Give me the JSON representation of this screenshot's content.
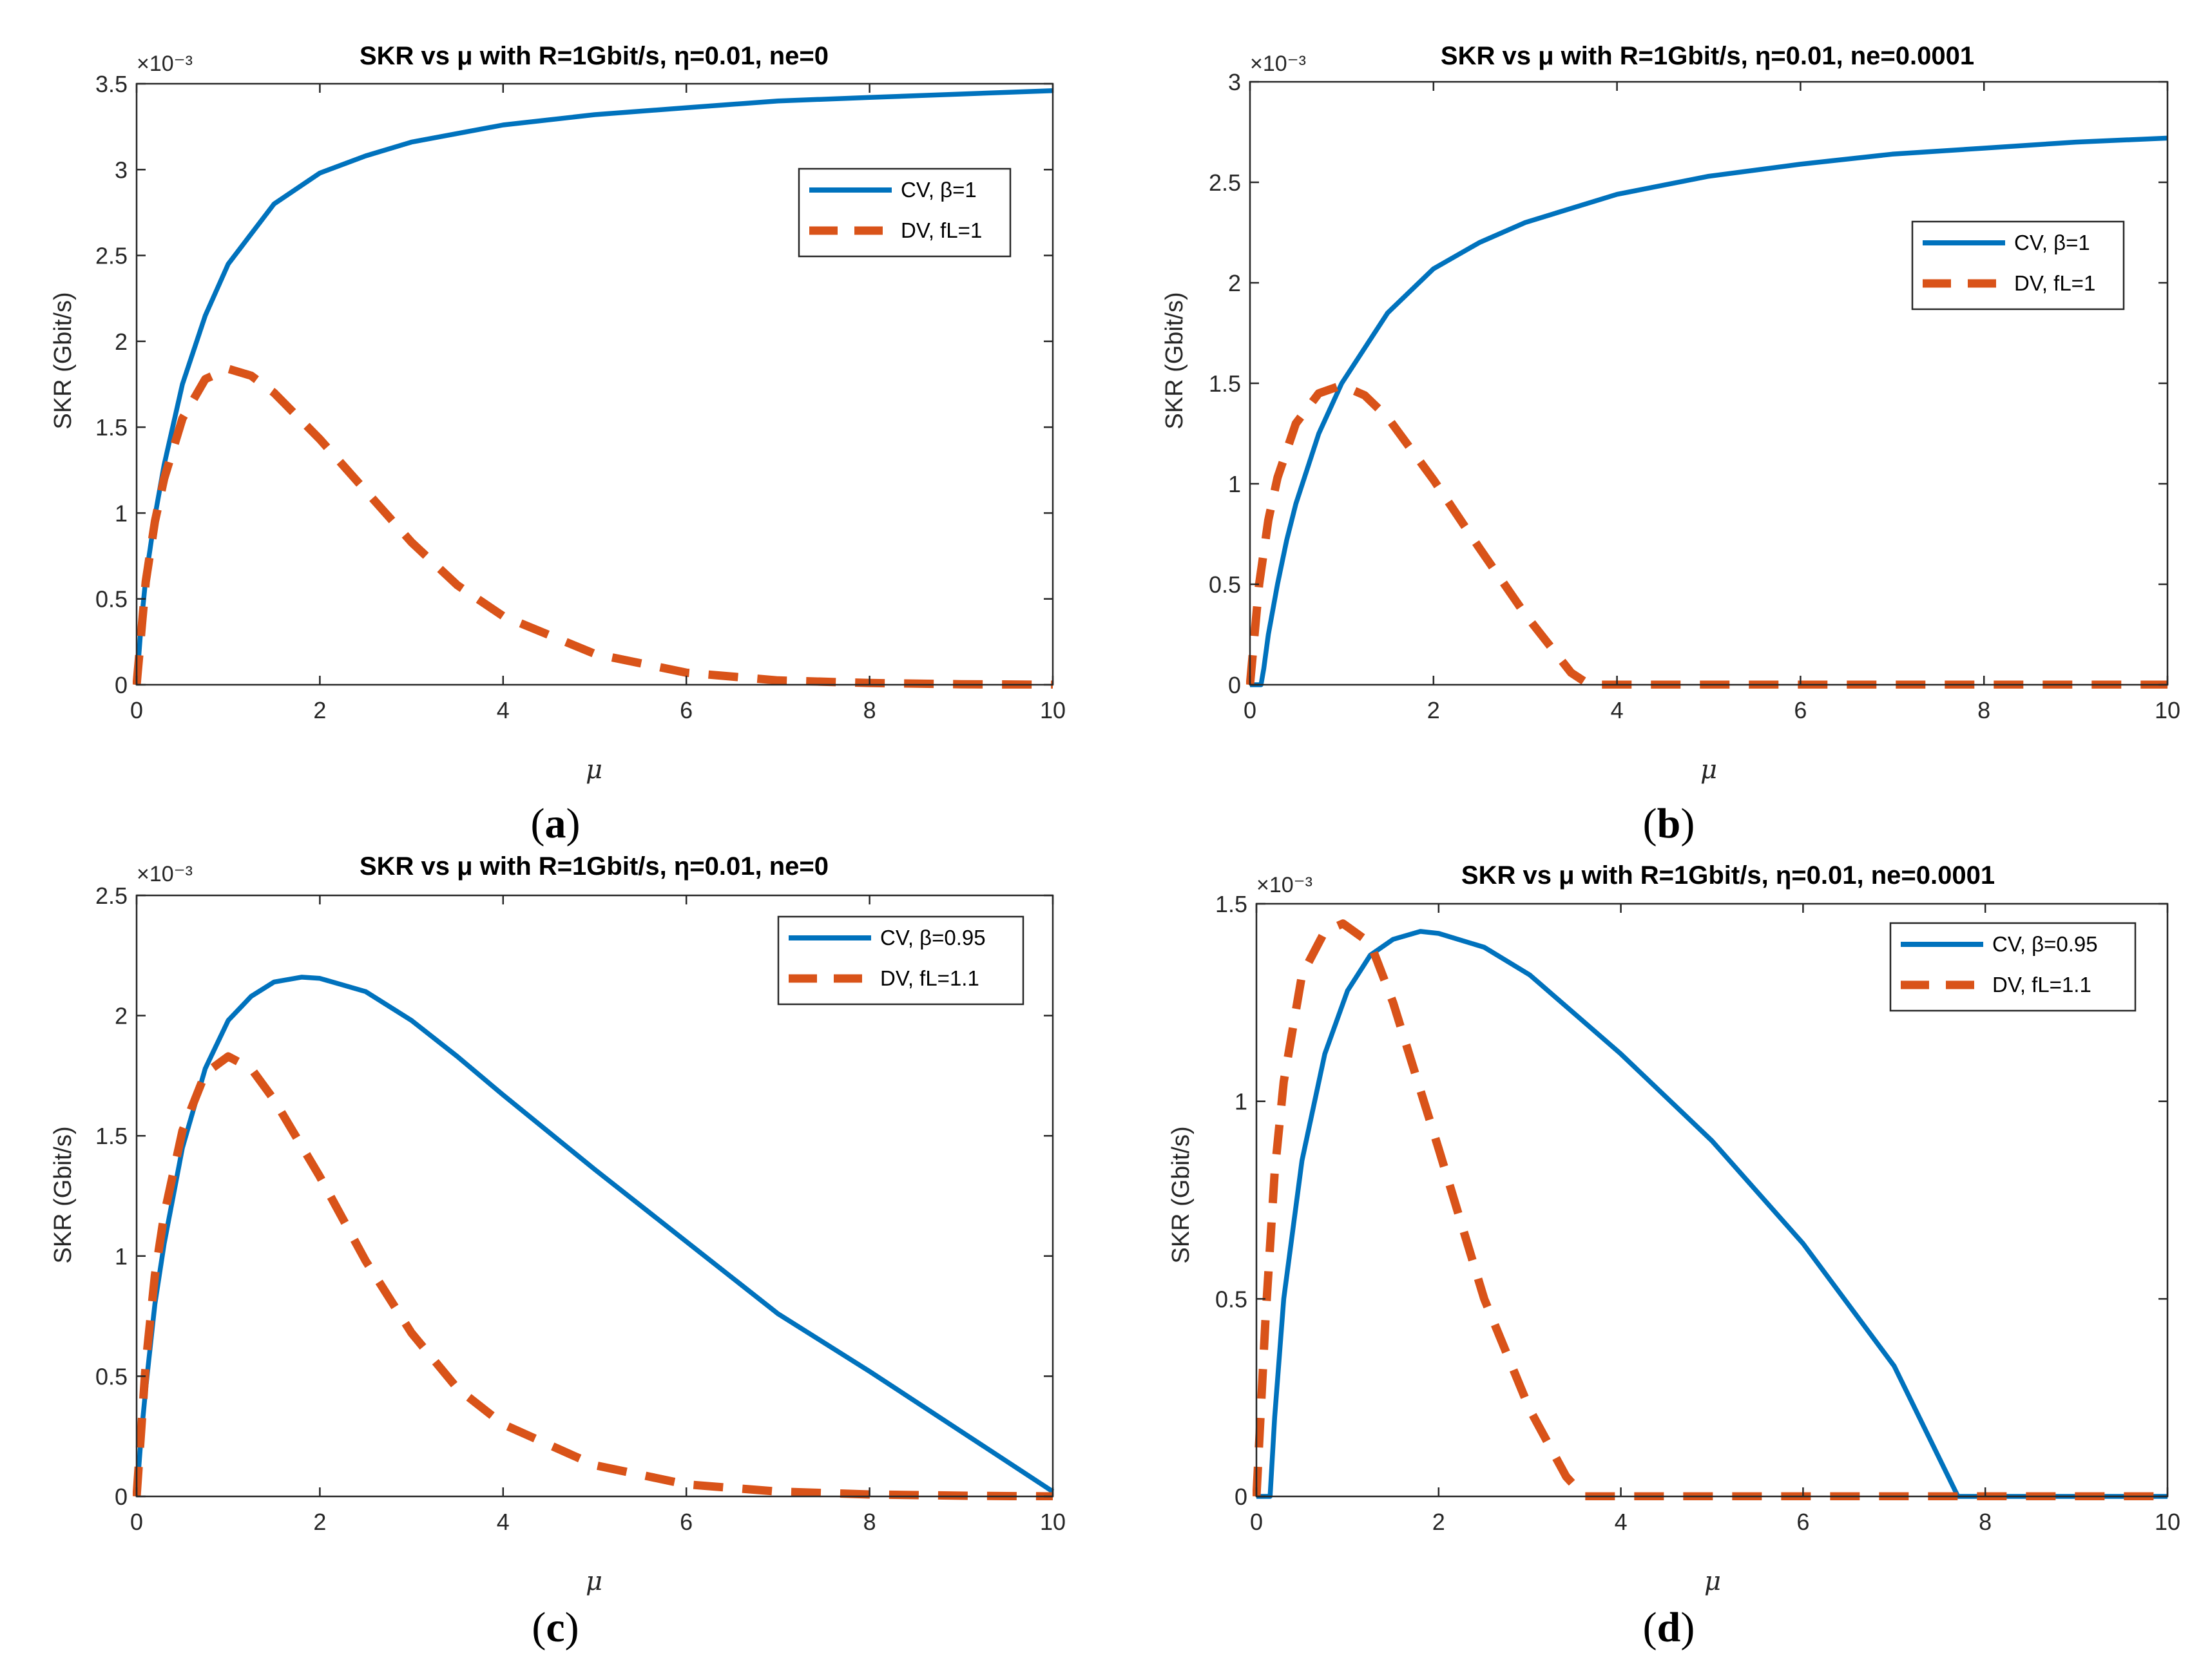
{
  "figure": {
    "panel_labels": [
      "a",
      "b",
      "c",
      "d"
    ]
  },
  "colors": {
    "cv": "#0072BD",
    "dv": "#D95319",
    "axis": "#262626"
  },
  "chart_data": [
    {
      "type": "line",
      "panel": "a",
      "title": "SKR vs μ with R=1Gbit/s, η=0.01, ne=0",
      "xlabel": "μ",
      "ylabel": "SKR (Gbit/s)",
      "y_exponent": "×10⁻³",
      "xlim": [
        0,
        10
      ],
      "ylim": [
        0,
        3.5
      ],
      "xticks": [
        0,
        2,
        4,
        6,
        8,
        10
      ],
      "yticks": [
        0,
        0.5,
        1,
        1.5,
        2,
        2.5,
        3,
        3.5
      ],
      "legend_position": "top-right",
      "series": [
        {
          "name": "CV, β=1",
          "style": "solid",
          "x": [
            0,
            0.05,
            0.1,
            0.2,
            0.3,
            0.5,
            0.75,
            1,
            1.5,
            2,
            2.5,
            3,
            4,
            5,
            6,
            7,
            8,
            9,
            10
          ],
          "y": [
            0,
            0.35,
            0.62,
            0.98,
            1.28,
            1.75,
            2.15,
            2.45,
            2.8,
            2.98,
            3.08,
            3.16,
            3.26,
            3.32,
            3.36,
            3.4,
            3.42,
            3.44,
            3.46
          ]
        },
        {
          "name": "DV, fL=1",
          "style": "dashed",
          "x": [
            0,
            0.1,
            0.2,
            0.3,
            0.5,
            0.75,
            1,
            1.25,
            1.5,
            2,
            2.5,
            3,
            3.5,
            4,
            5,
            6,
            7,
            8,
            9,
            10
          ],
          "y": [
            0,
            0.6,
            0.95,
            1.2,
            1.55,
            1.78,
            1.84,
            1.8,
            1.7,
            1.43,
            1.13,
            0.83,
            0.58,
            0.4,
            0.18,
            0.07,
            0.025,
            0.01,
            0.003,
            0.0
          ]
        }
      ]
    },
    {
      "type": "line",
      "panel": "b",
      "title": "SKR vs μ with R=1Gbit/s, η=0.01, ne=0.0001",
      "xlabel": "μ",
      "ylabel": "SKR (Gbit/s)",
      "y_exponent": "×10⁻³",
      "xlim": [
        0,
        10
      ],
      "ylim": [
        0,
        3
      ],
      "xticks": [
        0,
        2,
        4,
        6,
        8,
        10
      ],
      "yticks": [
        0,
        0.5,
        1,
        1.5,
        2,
        2.5,
        3
      ],
      "legend_position": "top-right",
      "series": [
        {
          "name": "CV, β=1",
          "style": "solid",
          "x": [
            0,
            0.12,
            0.15,
            0.2,
            0.3,
            0.4,
            0.5,
            0.75,
            1,
            1.5,
            2,
            2.5,
            3,
            4,
            5,
            6,
            7,
            8,
            9,
            10
          ],
          "y": [
            0,
            0,
            0.08,
            0.25,
            0.5,
            0.72,
            0.9,
            1.25,
            1.5,
            1.85,
            2.07,
            2.2,
            2.3,
            2.44,
            2.53,
            2.59,
            2.64,
            2.67,
            2.7,
            2.72
          ]
        },
        {
          "name": "DV, fL=1",
          "style": "dashed",
          "x": [
            0,
            0.1,
            0.2,
            0.3,
            0.5,
            0.75,
            1,
            1.25,
            1.5,
            2,
            2.5,
            3,
            3.5,
            3.7,
            4,
            5,
            6,
            7,
            8,
            9,
            10
          ],
          "y": [
            0,
            0.5,
            0.82,
            1.03,
            1.3,
            1.45,
            1.49,
            1.44,
            1.33,
            1.02,
            0.68,
            0.35,
            0.06,
            0,
            0,
            0,
            0,
            0,
            0,
            0,
            0
          ]
        }
      ]
    },
    {
      "type": "line",
      "panel": "c",
      "title": "SKR vs μ with R=1Gbit/s, η=0.01, ne=0",
      "xlabel": "μ",
      "ylabel": "SKR (Gbit/s)",
      "y_exponent": "×10⁻³",
      "xlim": [
        0,
        10
      ],
      "ylim": [
        0,
        2.5
      ],
      "xticks": [
        0,
        2,
        4,
        6,
        8,
        10
      ],
      "yticks": [
        0,
        0.5,
        1,
        1.5,
        2,
        2.5
      ],
      "legend_position": "top-right",
      "series": [
        {
          "name": "CV, β=0.95",
          "style": "solid",
          "x": [
            0,
            0.05,
            0.1,
            0.2,
            0.3,
            0.5,
            0.75,
            1,
            1.25,
            1.5,
            1.8,
            2,
            2.5,
            3,
            3.5,
            4,
            5,
            6,
            7,
            8,
            9,
            10
          ],
          "y": [
            0,
            0.25,
            0.45,
            0.8,
            1.05,
            1.45,
            1.78,
            1.98,
            2.08,
            2.14,
            2.16,
            2.155,
            2.1,
            1.98,
            1.83,
            1.67,
            1.36,
            1.06,
            0.76,
            0.52,
            0.27,
            0.02
          ]
        },
        {
          "name": "DV, fL=1.1",
          "style": "dashed",
          "x": [
            0,
            0.1,
            0.2,
            0.3,
            0.5,
            0.75,
            1,
            1.25,
            1.5,
            2,
            2.5,
            3,
            3.5,
            4,
            5,
            6,
            7,
            8,
            9,
            10
          ],
          "y": [
            0,
            0.55,
            0.92,
            1.17,
            1.52,
            1.76,
            1.83,
            1.78,
            1.65,
            1.33,
            0.98,
            0.68,
            0.45,
            0.3,
            0.13,
            0.05,
            0.02,
            0.008,
            0.003,
            0.0
          ]
        }
      ]
    },
    {
      "type": "line",
      "panel": "d",
      "title": "SKR vs μ with R=1Gbit/s, η=0.01, ne=0.0001",
      "xlabel": "μ",
      "ylabel": "SKR (Gbit/s)",
      "y_exponent": "×10⁻³",
      "xlim": [
        0,
        10
      ],
      "ylim": [
        0,
        1.5
      ],
      "xticks": [
        0,
        2,
        4,
        6,
        8,
        10
      ],
      "yticks": [
        0,
        0.5,
        1,
        1.5
      ],
      "legend_position": "top-right",
      "series": [
        {
          "name": "CV, β=0.95",
          "style": "solid",
          "x": [
            0,
            0.15,
            0.2,
            0.3,
            0.5,
            0.75,
            1,
            1.25,
            1.5,
            1.8,
            2,
            2.5,
            3,
            3.5,
            4,
            5,
            6,
            7,
            7.7,
            8,
            9,
            10
          ],
          "y": [
            0,
            0,
            0.2,
            0.5,
            0.85,
            1.12,
            1.28,
            1.37,
            1.41,
            1.43,
            1.425,
            1.39,
            1.32,
            1.22,
            1.12,
            0.9,
            0.64,
            0.33,
            0.0,
            0,
            0,
            0
          ]
        },
        {
          "name": "DV, fL=1.1",
          "style": "dashed",
          "x": [
            0,
            0.1,
            0.2,
            0.3,
            0.5,
            0.75,
            0.95,
            1.25,
            1.5,
            2,
            2.5,
            3,
            3.4,
            3.6,
            4,
            5,
            6,
            7,
            8,
            9,
            10
          ],
          "y": [
            0,
            0.45,
            0.82,
            1.05,
            1.32,
            1.43,
            1.45,
            1.4,
            1.25,
            0.88,
            0.5,
            0.22,
            0.05,
            0,
            0,
            0,
            0,
            0,
            0,
            0,
            0
          ]
        }
      ]
    }
  ]
}
